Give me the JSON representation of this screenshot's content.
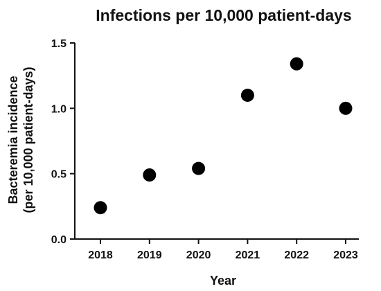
{
  "chart_data": {
    "type": "scatter",
    "title": "Infections per 10,000 patient-days",
    "xlabel": "Year",
    "ylabel": [
      "Bacteremia incidence",
      "(per 10,000 patient-days)"
    ],
    "x": [
      "2018",
      "2019",
      "2020",
      "2021",
      "2022",
      "2023"
    ],
    "y": [
      0.24,
      0.49,
      0.54,
      1.1,
      1.34,
      1.0
    ],
    "ylim": [
      0.0,
      1.5
    ],
    "yticks": [
      0.0,
      0.5,
      1.0,
      1.5
    ],
    "ytick_labels": [
      "0.0",
      "0.5",
      "1.0",
      "1.5"
    ],
    "grid": false,
    "legend": "none",
    "marker": "filled-circle",
    "marker_color": "#000000",
    "axis_color": "#111111"
  }
}
